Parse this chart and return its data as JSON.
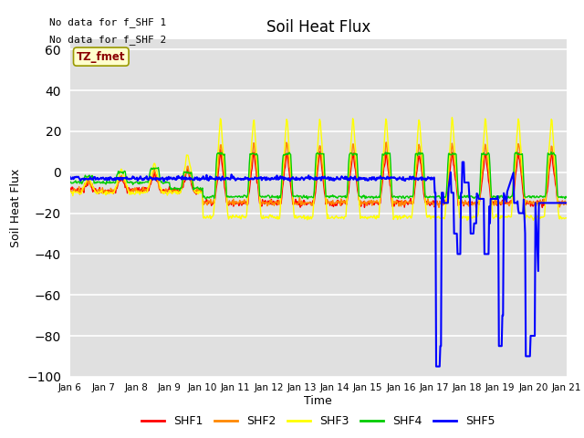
{
  "title": "Soil Heat Flux",
  "ylabel": "Soil Heat Flux",
  "xlabel": "Time",
  "xlim_start": 6,
  "xlim_end": 21,
  "ylim": [
    -100,
    65
  ],
  "yticks": [
    -100,
    -80,
    -60,
    -40,
    -20,
    0,
    20,
    40,
    60
  ],
  "xtick_labels": [
    "Jan 6",
    "Jan 7",
    "Jan 8",
    "Jan 9",
    "Jan 10",
    "Jan 11",
    "Jan 12",
    "Jan 13",
    "Jan 14",
    "Jan 15",
    "Jan 16",
    "Jan 17",
    "Jan 18",
    "Jan 19",
    "Jan 20",
    "Jan 21"
  ],
  "no_data_text_1": "No data for f_SHF 1",
  "no_data_text_2": "No data for f_SHF 2",
  "legend_label": "TZ_fmet",
  "series_names": [
    "SHF1",
    "SHF2",
    "SHF3",
    "SHF4",
    "SHF5"
  ],
  "series_colors": [
    "#ff0000",
    "#ff8800",
    "#ffff00",
    "#00cc00",
    "#0000ff"
  ],
  "bg_color": "#e0e0e0",
  "grid_color": "#ffffff"
}
